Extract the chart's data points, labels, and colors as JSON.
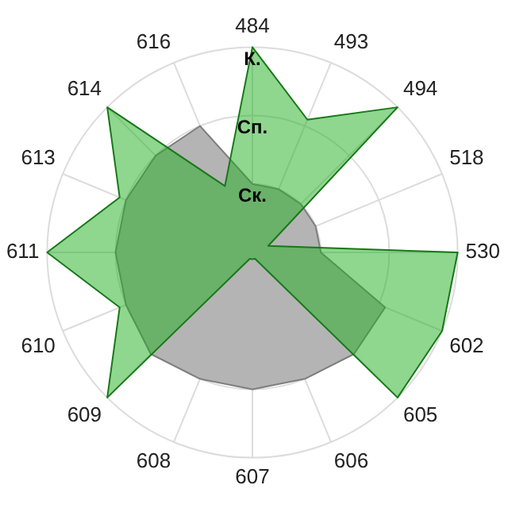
{
  "chart_data": {
    "type": "radar",
    "categories": [
      "484",
      "493",
      "494",
      "518",
      "530",
      "602",
      "605",
      "606",
      "607",
      "608",
      "609",
      "610",
      "611",
      "613",
      "614",
      "616"
    ],
    "series": [
      {
        "color": "#b4b4b4",
        "values": [
          1,
          1,
          1,
          1,
          1,
          2.1,
          2.1,
          2,
          2,
          2,
          2.1,
          2,
          2,
          2,
          2,
          2
        ]
      },
      {
        "color": "#1fad1f",
        "values": [
          3,
          2.1,
          3,
          0.25,
          3,
          3,
          3,
          0.1,
          0.1,
          0.1,
          3,
          2.1,
          3,
          2.1,
          3,
          1.05
        ]
      }
    ],
    "ylim": [
      0,
      3
    ],
    "yticks": [
      {
        "value": 1,
        "label": "Ск."
      },
      {
        "value": 2,
        "label": "Сп."
      },
      {
        "value": 3,
        "label": "К."
      }
    ],
    "grid": true,
    "legend": false,
    "marker": "none",
    "line_style": "solid"
  }
}
